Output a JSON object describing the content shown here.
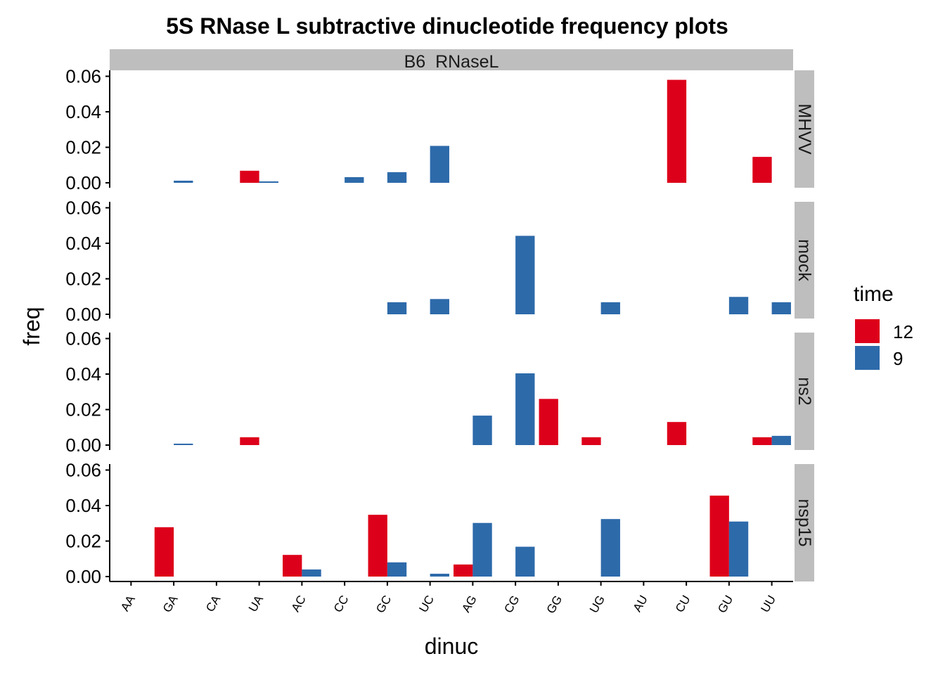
{
  "chart_data": {
    "type": "bar",
    "title": "5S RNase L subtractive dinucleotide frequency plots",
    "xlabel": "dinuc",
    "ylabel": "freq",
    "ylim": [
      0,
      0.062
    ],
    "yticks": [
      "0.00",
      "0.02",
      "0.04",
      "0.06"
    ],
    "facet_column": "B6  RNaseL",
    "categories": [
      "AA",
      "GA",
      "CA",
      "UA",
      "AC",
      "CC",
      "GC",
      "UC",
      "AG",
      "CG",
      "GG",
      "UG",
      "AU",
      "CU",
      "GU",
      "UU"
    ],
    "legend": {
      "title": "time",
      "entries": [
        {
          "label": "12",
          "color": "#DD001A"
        },
        {
          "label": "9",
          "color": "#2D6AAA"
        }
      ]
    },
    "panels": [
      {
        "label": "MHVV",
        "series": [
          {
            "name": "12",
            "values": [
              null,
              null,
              null,
              0.0068,
              null,
              null,
              null,
              null,
              null,
              null,
              null,
              null,
              null,
              0.058,
              null,
              0.0146
            ]
          },
          {
            "name": "9",
            "values": [
              null,
              0.0012,
              null,
              0.0008,
              null,
              0.0032,
              0.006,
              0.0208,
              null,
              null,
              null,
              null,
              null,
              null,
              null,
              null
            ]
          }
        ]
      },
      {
        "label": "mock",
        "series": [
          {
            "name": "12",
            "values": [
              null,
              null,
              null,
              null,
              null,
              null,
              null,
              null,
              null,
              null,
              null,
              null,
              null,
              null,
              null,
              null
            ]
          },
          {
            "name": "9",
            "values": [
              null,
              null,
              null,
              null,
              null,
              null,
              0.0068,
              0.0086,
              null,
              0.0442,
              null,
              0.0068,
              null,
              null,
              0.0098,
              0.0068
            ]
          }
        ]
      },
      {
        "label": "ns2",
        "series": [
          {
            "name": "12",
            "values": [
              null,
              null,
              null,
              0.0044,
              null,
              null,
              null,
              null,
              null,
              null,
              0.026,
              0.0044,
              null,
              0.013,
              null,
              0.0044
            ]
          },
          {
            "name": "9",
            "values": [
              null,
              0.0008,
              null,
              null,
              null,
              null,
              null,
              null,
              0.0166,
              0.0404,
              null,
              null,
              null,
              null,
              null,
              0.0052
            ]
          }
        ]
      },
      {
        "label": "nsp15",
        "series": [
          {
            "name": "12",
            "values": [
              null,
              0.0278,
              null,
              null,
              0.0122,
              null,
              0.0348,
              null,
              0.0068,
              null,
              null,
              null,
              null,
              null,
              0.0456,
              null
            ]
          },
          {
            "name": "9",
            "values": [
              null,
              null,
              null,
              null,
              0.004,
              null,
              0.008,
              0.0016,
              0.0302,
              0.0168,
              null,
              0.0324,
              null,
              null,
              0.031,
              null
            ]
          }
        ]
      }
    ]
  }
}
